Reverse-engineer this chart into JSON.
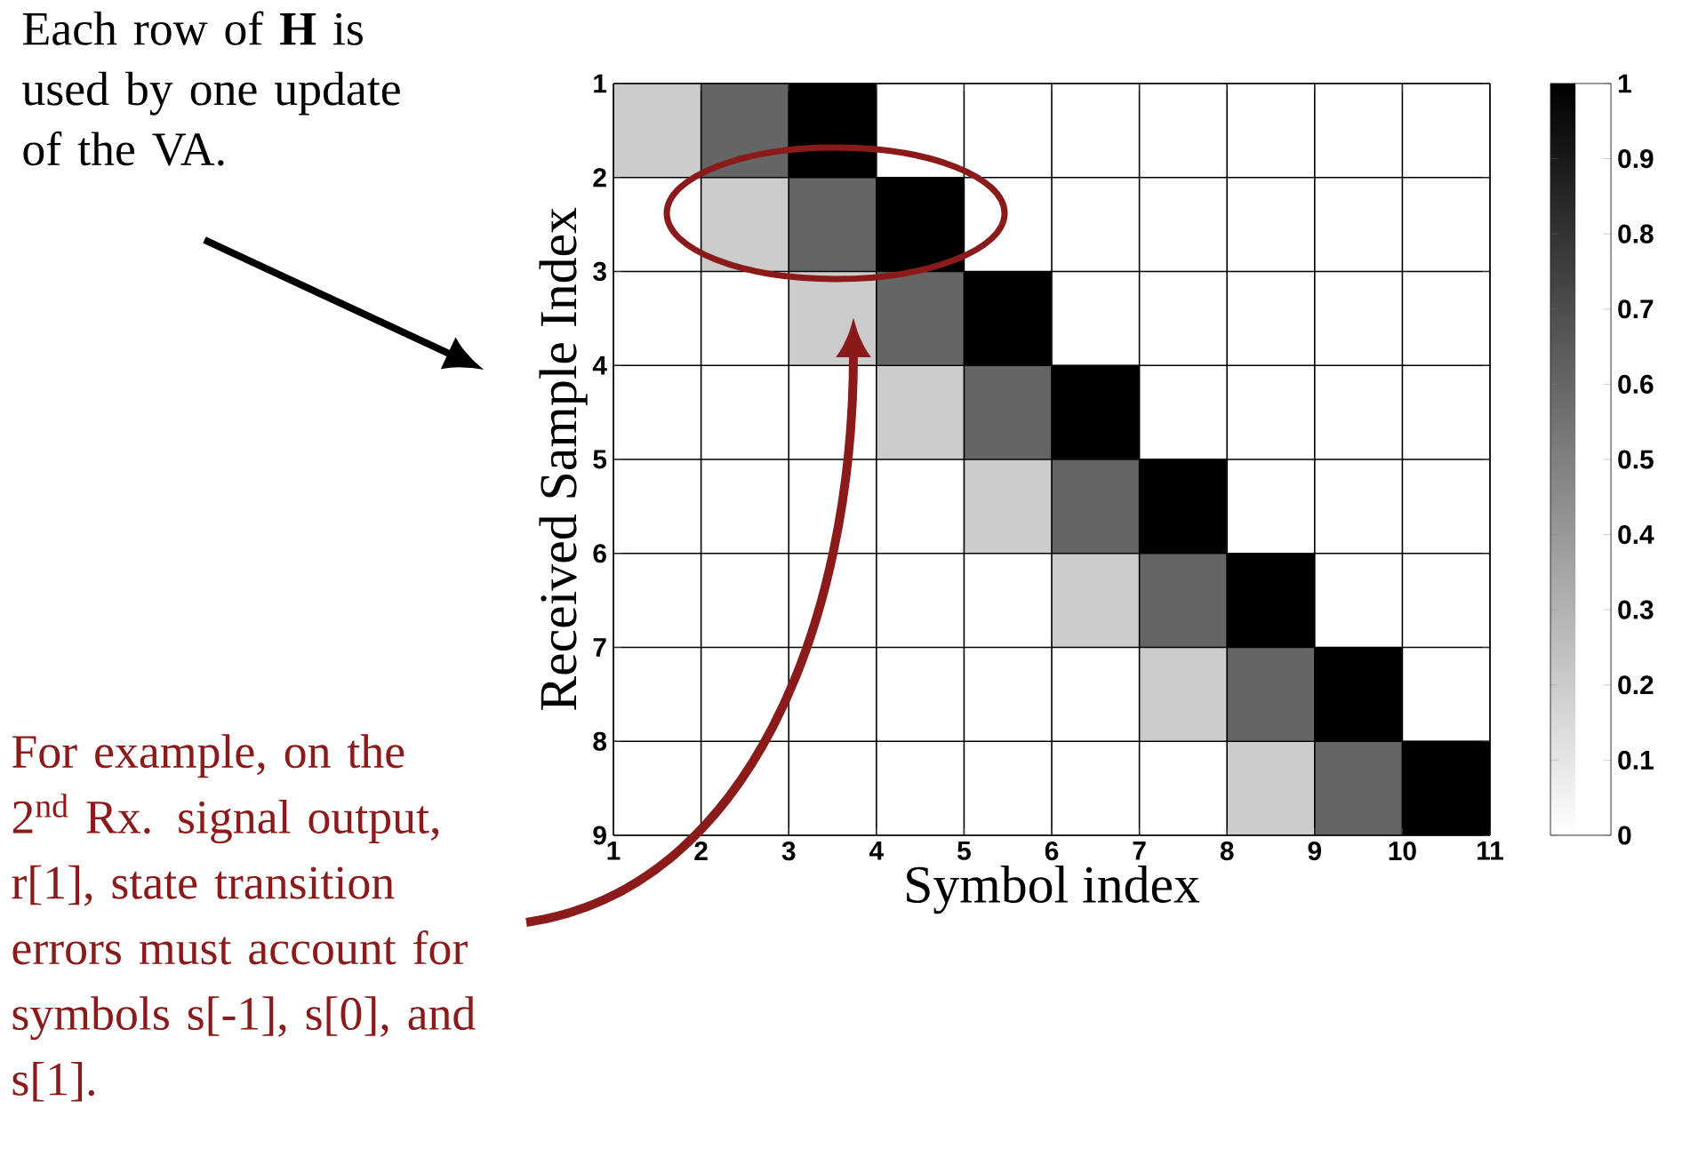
{
  "chart_data": {
    "type": "heatmap",
    "xlabel": "Symbol index",
    "ylabel": "Received Sample Index",
    "xlim": [
      1,
      11
    ],
    "xticks": [
      1,
      2,
      3,
      4,
      5,
      6,
      7,
      8,
      9,
      10,
      11
    ],
    "ylim": [
      9,
      1
    ],
    "yticks": [
      1,
      2,
      3,
      4,
      5,
      6,
      7,
      8,
      9
    ],
    "cells": [
      [
        0.2,
        0.6,
        1,
        0,
        0,
        0,
        0,
        0,
        0,
        0
      ],
      [
        0,
        0.2,
        0.6,
        1,
        0,
        0,
        0,
        0,
        0,
        0
      ],
      [
        0,
        0,
        0.2,
        0.6,
        1,
        0,
        0,
        0,
        0,
        0
      ],
      [
        0,
        0,
        0,
        0.2,
        0.6,
        1,
        0,
        0,
        0,
        0
      ],
      [
        0,
        0,
        0,
        0,
        0.2,
        0.6,
        1,
        0,
        0,
        0
      ],
      [
        0,
        0,
        0,
        0,
        0,
        0.2,
        0.6,
        1,
        0,
        0
      ],
      [
        0,
        0,
        0,
        0,
        0,
        0,
        0.2,
        0.6,
        1,
        0
      ],
      [
        0,
        0,
        0,
        0,
        0,
        0,
        0,
        0.2,
        0.6,
        1
      ]
    ],
    "clim": [
      0,
      1
    ],
    "cticks": [
      0,
      0.1,
      0.2,
      0.3,
      0.4,
      0.5,
      0.6,
      0.7,
      0.8,
      0.9,
      1
    ],
    "grid": true,
    "annotations": [
      "Each row of **H** is used by one update of the VA.",
      "For example, on the 2$^{nd}$ Rx. signal output, r[1], state transition errors must account for symbols s[-1], s[0], and s[1]."
    ]
  }
}
